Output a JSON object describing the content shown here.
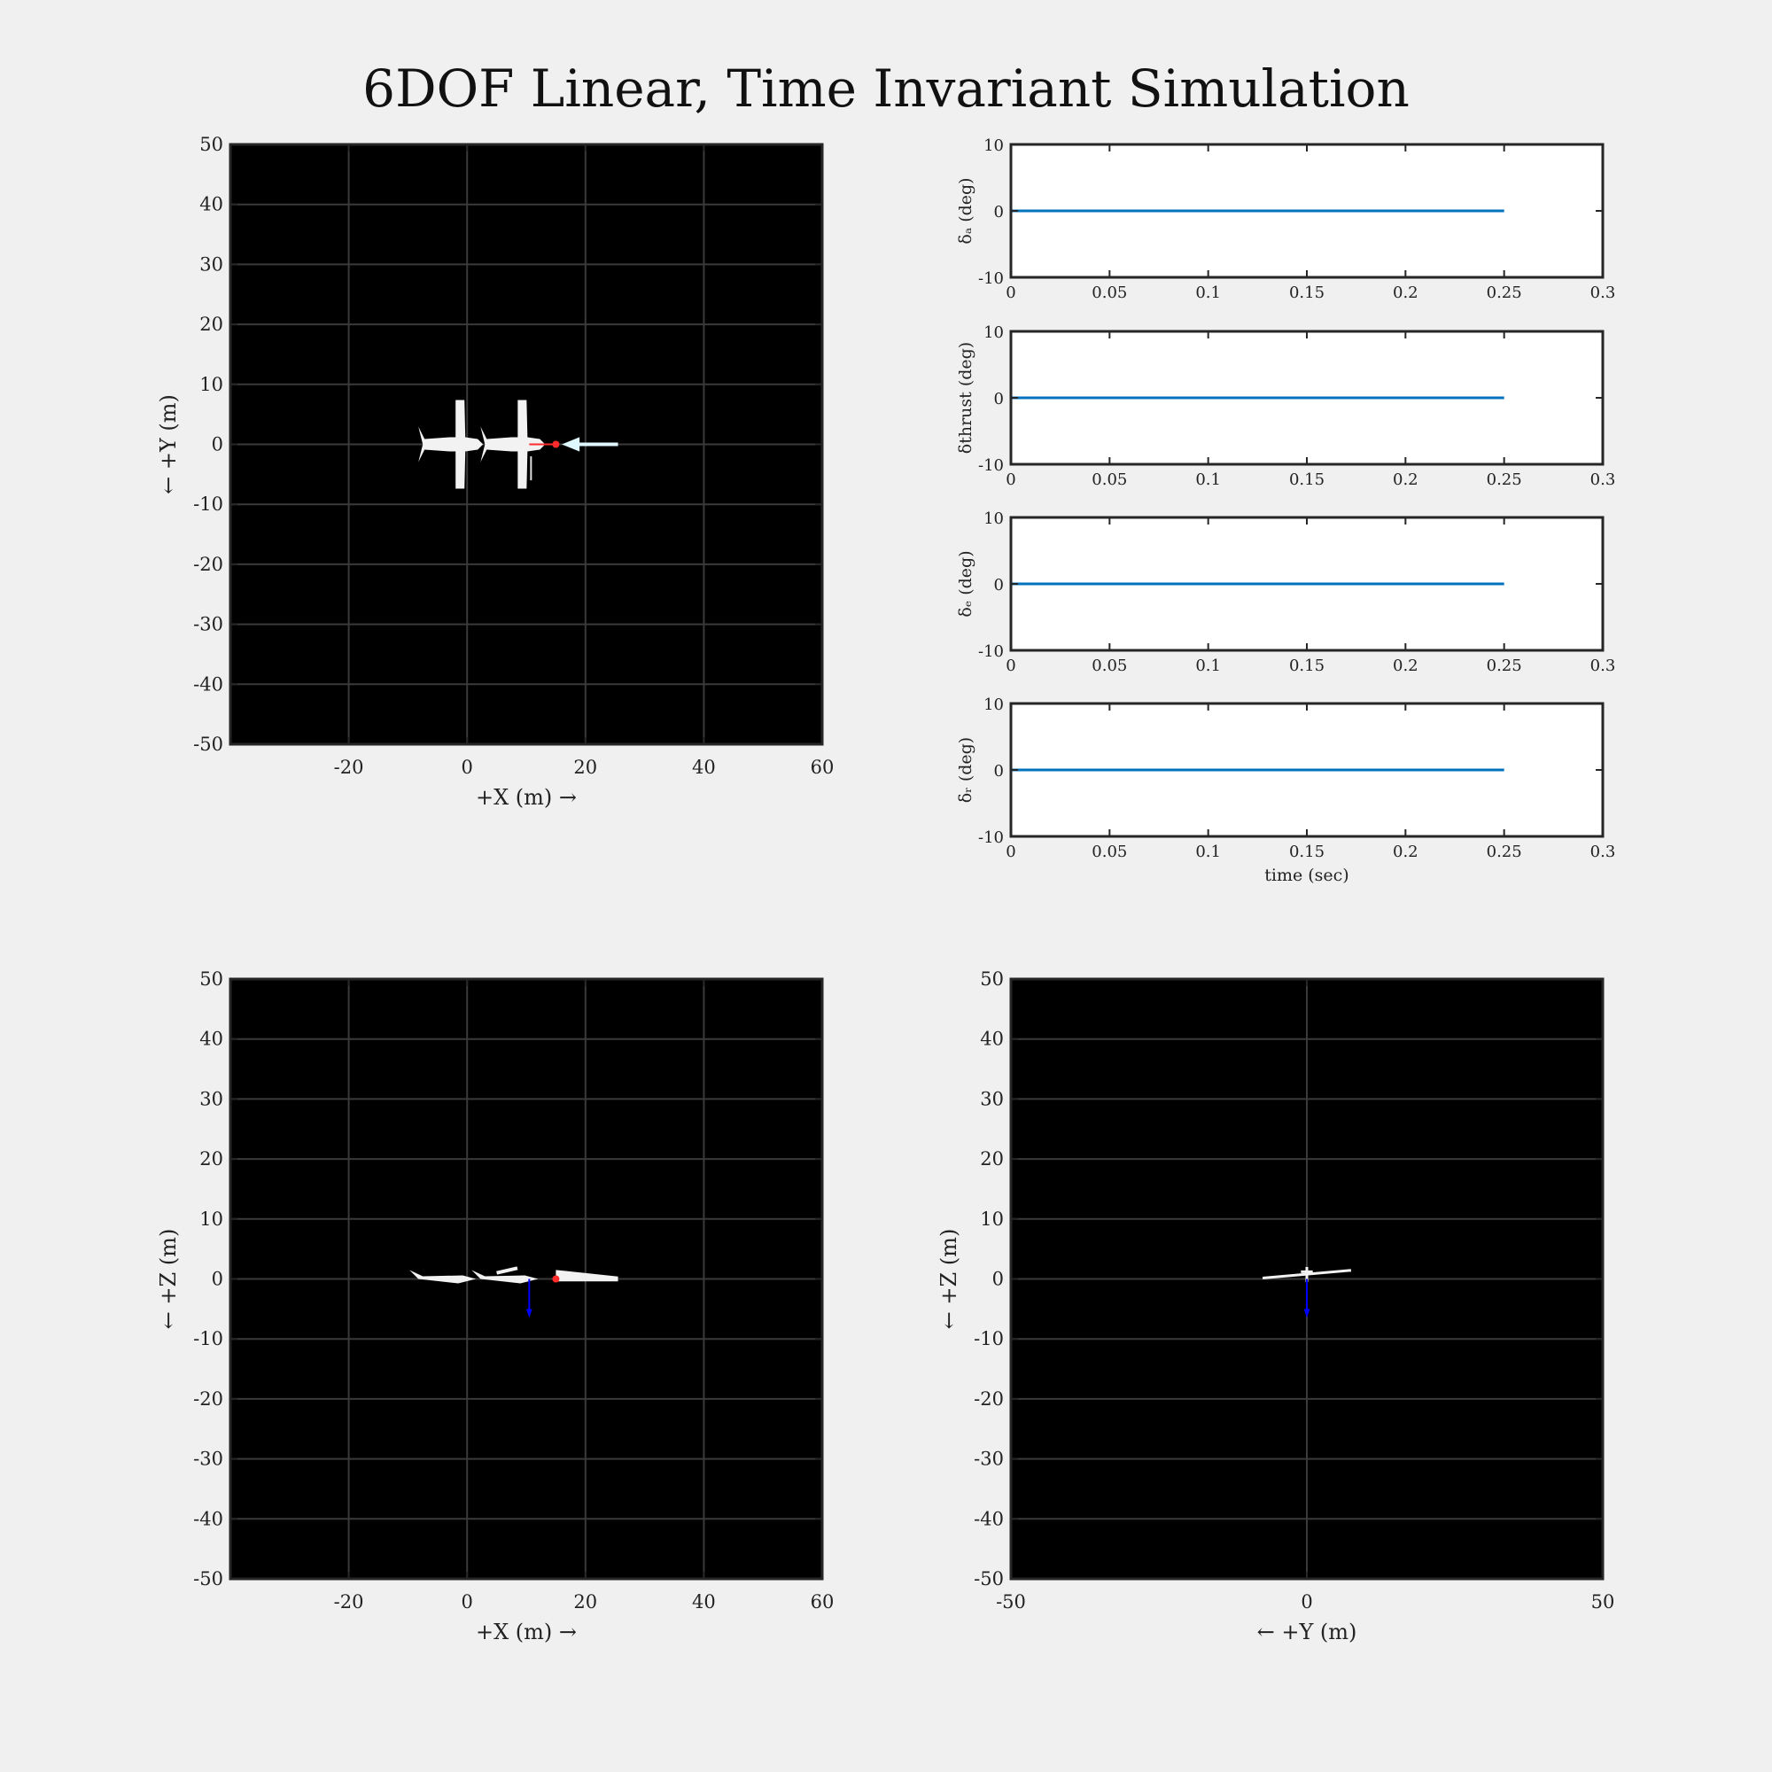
{
  "figure": {
    "title": "6DOF Linear, Time Invariant Simulation"
  },
  "chart_data": [
    {
      "id": "top-view",
      "type": "scatter",
      "xlabel": "+X (m) →",
      "ylabel": "← +Y (m)",
      "xlim": [
        -40,
        60
      ],
      "ylim": [
        -50,
        50
      ],
      "xticks": [
        -20,
        0,
        20,
        40,
        60
      ],
      "yticks": [
        -50,
        -40,
        -30,
        -20,
        -10,
        0,
        10,
        20,
        30,
        40,
        50
      ],
      "grid": true,
      "background": "#000000",
      "aircraft_positions_x": [
        0,
        10.5
      ],
      "markers": [
        {
          "name": "cg",
          "x": 15,
          "y": 0,
          "color": "#ff2a2a"
        }
      ]
    },
    {
      "id": "delta-a",
      "type": "line",
      "ylabel": "δₐ (deg)",
      "xlim": [
        0,
        0.3
      ],
      "ylim": [
        -10,
        10
      ],
      "xticks": [
        0,
        0.05,
        0.1,
        0.15,
        0.2,
        0.25,
        0.3
      ],
      "yticks": [
        -10,
        0,
        10
      ],
      "series": [
        {
          "x": [
            0,
            0.25
          ],
          "y": [
            0,
            0
          ],
          "color": "#0072bd"
        }
      ]
    },
    {
      "id": "delta-thrust",
      "type": "line",
      "ylabel": "δthrust (deg)",
      "xlim": [
        0,
        0.3
      ],
      "ylim": [
        -10,
        10
      ],
      "xticks": [
        0,
        0.05,
        0.1,
        0.15,
        0.2,
        0.25,
        0.3
      ],
      "yticks": [
        -10,
        0,
        10
      ],
      "series": [
        {
          "x": [
            0,
            0.25
          ],
          "y": [
            0,
            0
          ],
          "color": "#0072bd"
        }
      ]
    },
    {
      "id": "delta-e",
      "type": "line",
      "ylabel": "δₑ (deg)",
      "xlim": [
        0,
        0.3
      ],
      "ylim": [
        -10,
        10
      ],
      "xticks": [
        0,
        0.05,
        0.1,
        0.15,
        0.2,
        0.25,
        0.3
      ],
      "yticks": [
        -10,
        0,
        10
      ],
      "series": [
        {
          "x": [
            0,
            0.25
          ],
          "y": [
            0,
            0
          ],
          "color": "#0072bd"
        }
      ]
    },
    {
      "id": "delta-r",
      "type": "line",
      "ylabel": "δᵣ (deg)",
      "xlabel": "time (sec)",
      "xlim": [
        0,
        0.3
      ],
      "ylim": [
        -10,
        10
      ],
      "xticks": [
        0,
        0.05,
        0.1,
        0.15,
        0.2,
        0.25,
        0.3
      ],
      "yticks": [
        -10,
        0,
        10
      ],
      "series": [
        {
          "x": [
            0,
            0.25
          ],
          "y": [
            0,
            0
          ],
          "color": "#0072bd"
        }
      ]
    },
    {
      "id": "side-view",
      "type": "scatter",
      "xlabel": "+X (m) →",
      "ylabel": "← +Z (m)",
      "xlim": [
        -40,
        60
      ],
      "ylim": [
        -50,
        50
      ],
      "xticks": [
        -20,
        0,
        20,
        40,
        60
      ],
      "yticks": [
        -50,
        -40,
        -30,
        -20,
        -10,
        0,
        10,
        20,
        30,
        40,
        50
      ],
      "grid": true,
      "background": "#000000"
    },
    {
      "id": "front-view",
      "type": "scatter",
      "xlabel": "← +Y (m)",
      "ylabel": "← +Z (m)",
      "xlim": [
        -50,
        50
      ],
      "ylim": [
        -50,
        50
      ],
      "xticks": [
        -50,
        0,
        50
      ],
      "yticks": [
        -50,
        -40,
        -30,
        -20,
        -10,
        0,
        10,
        20,
        30,
        40,
        50
      ],
      "grid": true,
      "background": "#000000"
    }
  ]
}
